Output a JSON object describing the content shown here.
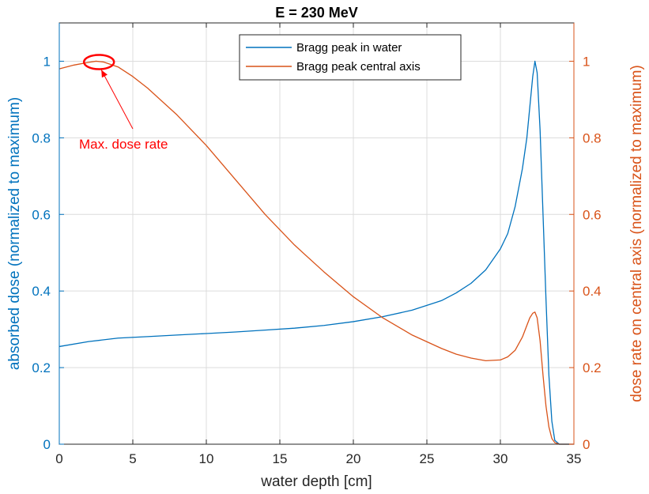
{
  "chart_data": {
    "type": "line",
    "title": "E = 230 MeV",
    "xlabel": "water depth [cm]",
    "ylabel_left": "absorbed dose (normalized to maximum)",
    "ylabel_right": "dose rate on central axis (normalized to maximum)",
    "xlim": [
      0,
      35
    ],
    "ylim_left": [
      0,
      1.1
    ],
    "ylim_right": [
      0,
      1.1
    ],
    "xticks": [
      "0",
      "5",
      "10",
      "15",
      "20",
      "25",
      "30",
      "35"
    ],
    "yticks_left": [
      "0",
      "0.2",
      "0.4",
      "0.6",
      "0.8",
      "1"
    ],
    "yticks_right": [
      "0",
      "0.2",
      "0.4",
      "0.6",
      "0.8",
      "1"
    ],
    "grid": true,
    "legend_position": "top-center",
    "series": [
      {
        "name": "Bragg peak in water",
        "color": "#0072BD",
        "axis": "left",
        "x": [
          0,
          2,
          4,
          6,
          8,
          10,
          12,
          14,
          16,
          18,
          20,
          22,
          24,
          26,
          27,
          28,
          29,
          30,
          30.5,
          31,
          31.5,
          31.8,
          32.0,
          32.2,
          32.35,
          32.5,
          32.7,
          32.9,
          33.1,
          33.3,
          33.5,
          33.7,
          34.0,
          35.0
        ],
        "y": [
          0.255,
          0.268,
          0.277,
          0.281,
          0.285,
          0.289,
          0.293,
          0.298,
          0.303,
          0.31,
          0.32,
          0.333,
          0.35,
          0.375,
          0.395,
          0.42,
          0.455,
          0.51,
          0.55,
          0.62,
          0.72,
          0.8,
          0.88,
          0.96,
          1.0,
          0.97,
          0.82,
          0.6,
          0.38,
          0.18,
          0.06,
          0.01,
          0.0,
          0.0
        ]
      },
      {
        "name": "Bragg peak central axis",
        "color": "#D95319",
        "axis": "right",
        "x": [
          0,
          1,
          2,
          2.5,
          3,
          4,
          5,
          6,
          8,
          10,
          12,
          14,
          16,
          18,
          20,
          22,
          24,
          26,
          27,
          28,
          29,
          30,
          30.5,
          31,
          31.5,
          31.8,
          32.0,
          32.2,
          32.35,
          32.5,
          32.7,
          32.9,
          33.1,
          33.3,
          33.5,
          33.7,
          34.0,
          35.0
        ],
        "y": [
          0.98,
          0.99,
          0.997,
          1.0,
          0.998,
          0.985,
          0.96,
          0.93,
          0.86,
          0.78,
          0.69,
          0.6,
          0.52,
          0.45,
          0.385,
          0.33,
          0.285,
          0.25,
          0.235,
          0.225,
          0.218,
          0.22,
          0.228,
          0.245,
          0.28,
          0.31,
          0.33,
          0.342,
          0.345,
          0.33,
          0.27,
          0.18,
          0.1,
          0.045,
          0.015,
          0.004,
          0.0,
          0.0
        ]
      }
    ],
    "annotations": [
      {
        "text": "Max. dose rate",
        "color": "#ff0000",
        "target_x": 2.7,
        "target_y": 1.0
      }
    ]
  }
}
